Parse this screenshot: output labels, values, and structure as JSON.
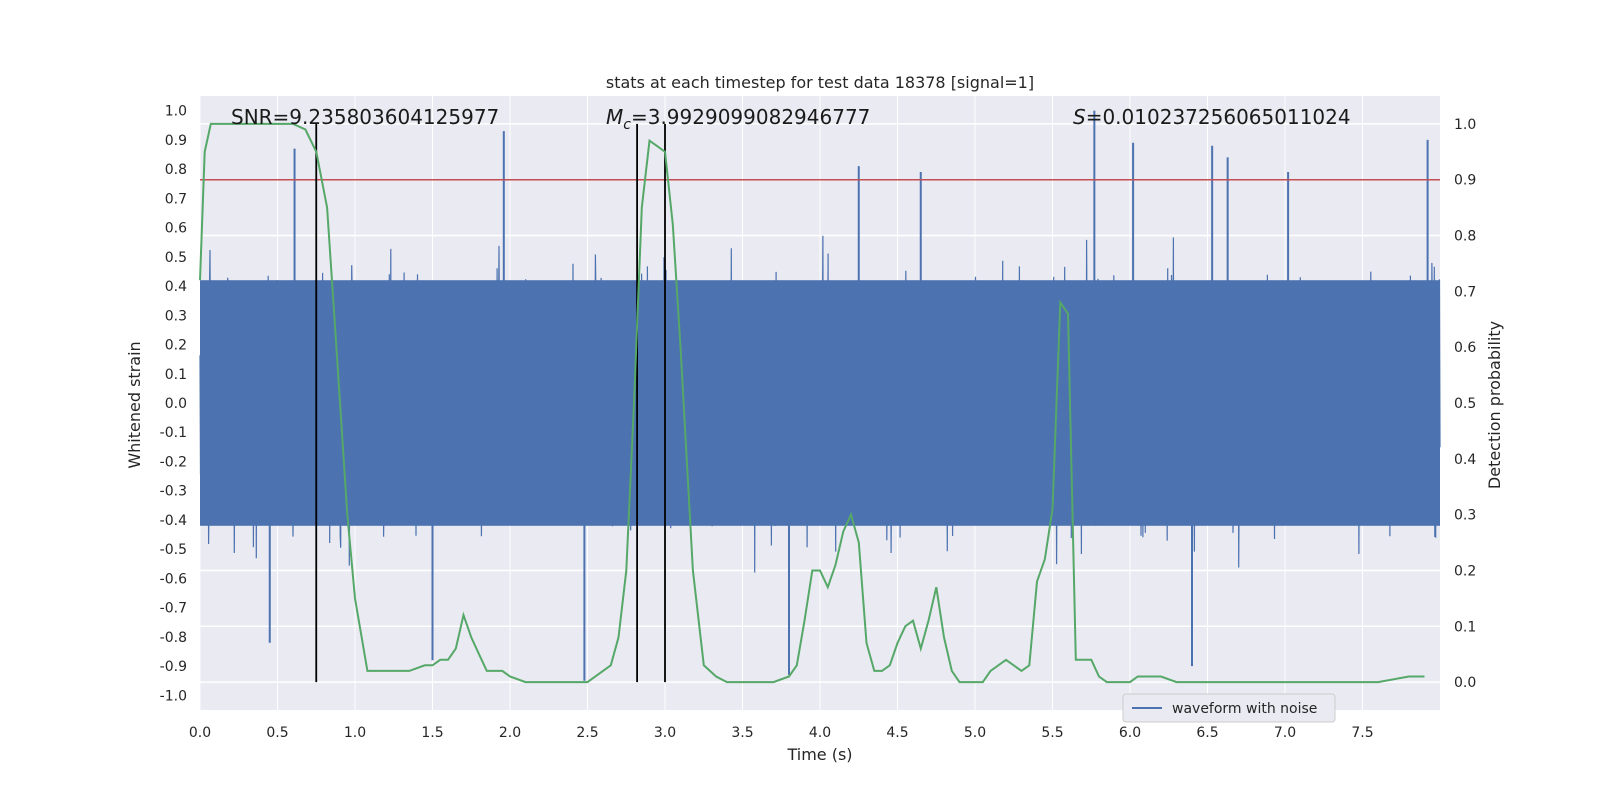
{
  "chart_data": {
    "type": "line",
    "title": "stats at each timestep for test data 18378 [signal=1]",
    "xlabel": "Time (s)",
    "ylabel_left": "Whitened strain",
    "ylabel_right": "Detection probability",
    "xlim": [
      0.0,
      8.0
    ],
    "ylim_left": [
      -1.05,
      1.05
    ],
    "ylim_right": [
      -0.05,
      1.05
    ],
    "x_ticks": [
      "0.0",
      "0.5",
      "1.0",
      "1.5",
      "2.0",
      "2.5",
      "3.0",
      "3.5",
      "4.0",
      "4.5",
      "5.0",
      "5.5",
      "6.0",
      "6.5",
      "7.0",
      "7.5"
    ],
    "y_ticks_left": [
      "1.0",
      "0.9",
      "0.8",
      "0.7",
      "0.6",
      "0.5",
      "0.4",
      "0.3",
      "0.2",
      "0.1",
      "0.0",
      "-0.1",
      "-0.2",
      "-0.3",
      "-0.4",
      "-0.5",
      "-0.6",
      "-0.7",
      "-0.8",
      "-0.9",
      "-1.0"
    ],
    "y_ticks_right": [
      "1.0",
      "0.9",
      "0.8",
      "0.7",
      "0.6",
      "0.5",
      "0.4",
      "0.3",
      "0.2",
      "0.1",
      "0.0"
    ],
    "grid": true,
    "legend_position": "bottom-right",
    "annotations": {
      "snr": "SNR=9.235803604125977",
      "mc_symbol": "M",
      "mc_subscript": "c",
      "mc_value": "=3.9929099082946777",
      "s_symbol": "S",
      "s_value": "=0.010237256065011024"
    },
    "threshold": {
      "value": 0.9,
      "axis": "right",
      "color": "#c44e52"
    },
    "vertical_markers": [
      0.75,
      2.82,
      3.0
    ],
    "series": [
      {
        "name": "waveform with noise",
        "axis": "left",
        "color": "#4c72b0",
        "kind": "noise",
        "envelope": 0.42,
        "spikes": [
          [
            0.61,
            0.87
          ],
          [
            1.96,
            0.93
          ],
          [
            5.77,
            1.0
          ],
          [
            7.92,
            0.9
          ],
          [
            0.45,
            -0.82
          ],
          [
            2.48,
            -0.95
          ],
          [
            3.8,
            -0.93
          ],
          [
            6.4,
            -0.9
          ],
          [
            1.5,
            -0.88
          ],
          [
            4.25,
            0.81
          ],
          [
            6.02,
            0.89
          ],
          [
            6.53,
            0.88
          ],
          [
            4.65,
            0.79
          ],
          [
            7.02,
            0.79
          ],
          [
            6.63,
            0.84
          ]
        ]
      },
      {
        "name": "Detection probability",
        "axis": "right",
        "color": "#55a868",
        "x": [
          0.0,
          0.03,
          0.07,
          0.12,
          0.2,
          0.4,
          0.6,
          0.68,
          0.75,
          0.82,
          0.88,
          0.95,
          1.0,
          1.08,
          1.15,
          1.25,
          1.35,
          1.45,
          1.5,
          1.55,
          1.6,
          1.65,
          1.7,
          1.75,
          1.8,
          1.85,
          1.9,
          1.95,
          2.0,
          2.1,
          2.2,
          2.3,
          2.4,
          2.5,
          2.6,
          2.65,
          2.7,
          2.75,
          2.8,
          2.85,
          2.9,
          2.95,
          3.0,
          3.05,
          3.1,
          3.18,
          3.25,
          3.33,
          3.4,
          3.5,
          3.6,
          3.7,
          3.8,
          3.85,
          3.9,
          3.95,
          4.0,
          4.05,
          4.1,
          4.15,
          4.2,
          4.25,
          4.3,
          4.35,
          4.4,
          4.45,
          4.5,
          4.55,
          4.6,
          4.65,
          4.7,
          4.75,
          4.8,
          4.85,
          4.9,
          4.95,
          5.0,
          5.05,
          5.1,
          5.2,
          5.3,
          5.35,
          5.4,
          5.45,
          5.5,
          5.55,
          5.6,
          5.65,
          5.7,
          5.75,
          5.8,
          5.85,
          5.9,
          5.95,
          6.0,
          6.05,
          6.1,
          6.2,
          6.3,
          6.4,
          6.5,
          6.6,
          6.7,
          6.8,
          7.0,
          7.2,
          7.4,
          7.6,
          7.8,
          7.9
        ],
        "y": [
          0.72,
          0.95,
          1.0,
          1.0,
          1.0,
          1.0,
          1.0,
          0.99,
          0.95,
          0.85,
          0.6,
          0.3,
          0.15,
          0.02,
          0.02,
          0.02,
          0.02,
          0.03,
          0.03,
          0.04,
          0.04,
          0.06,
          0.12,
          0.08,
          0.05,
          0.02,
          0.02,
          0.02,
          0.01,
          0.0,
          0.0,
          0.0,
          0.0,
          0.0,
          0.02,
          0.03,
          0.08,
          0.2,
          0.5,
          0.85,
          0.97,
          0.96,
          0.95,
          0.82,
          0.6,
          0.2,
          0.03,
          0.01,
          0.0,
          0.0,
          0.0,
          0.0,
          0.01,
          0.03,
          0.11,
          0.2,
          0.2,
          0.17,
          0.21,
          0.27,
          0.3,
          0.25,
          0.07,
          0.02,
          0.02,
          0.03,
          0.07,
          0.1,
          0.11,
          0.06,
          0.11,
          0.17,
          0.08,
          0.02,
          0.0,
          0.0,
          0.0,
          0.0,
          0.02,
          0.04,
          0.02,
          0.03,
          0.18,
          0.22,
          0.31,
          0.68,
          0.66,
          0.04,
          0.04,
          0.04,
          0.01,
          0.0,
          0.0,
          0.0,
          0.0,
          0.01,
          0.01,
          0.01,
          0.0,
          0.0,
          0.0,
          0.0,
          0.0,
          0.0,
          0.0,
          0.0,
          0.0,
          0.0,
          0.01,
          0.01
        ]
      }
    ]
  }
}
